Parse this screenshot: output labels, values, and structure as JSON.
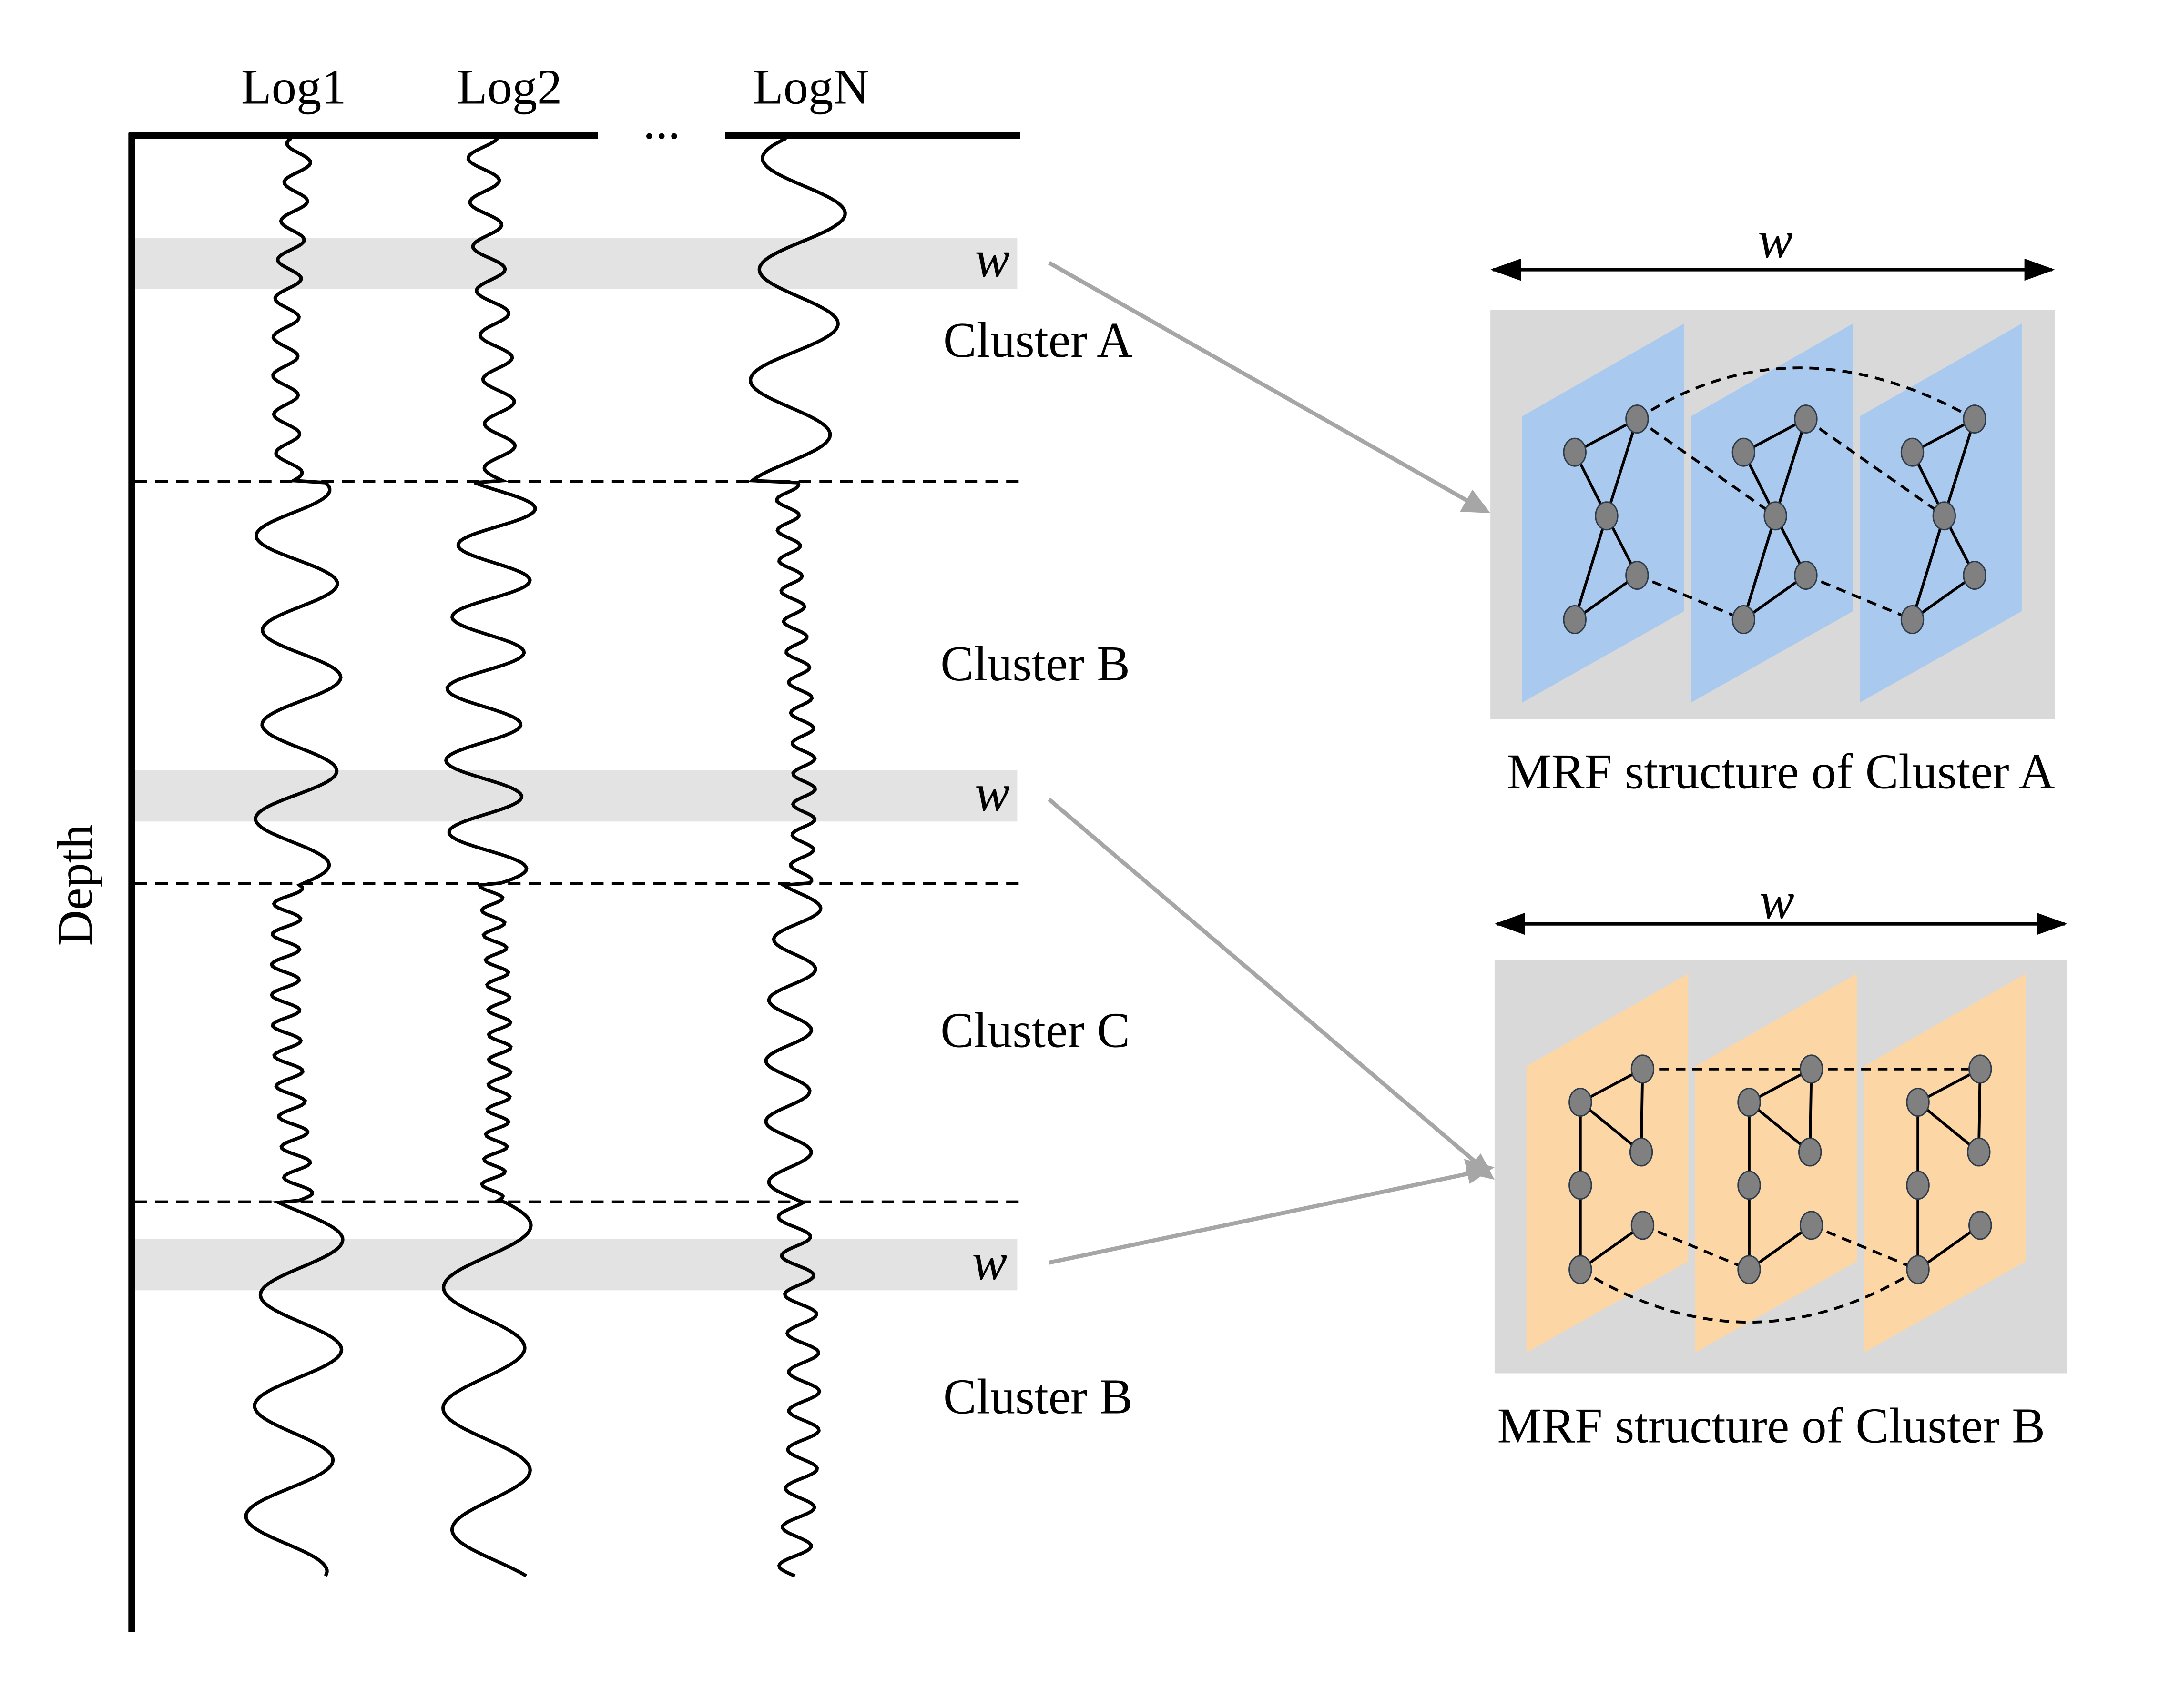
{
  "logs": [
    "Log1",
    "Log2",
    "LogN"
  ],
  "ellipsis": "...",
  "depth_label": "Depth",
  "window_label": "w",
  "clusters": [
    "Cluster A",
    "Cluster B",
    "Cluster C",
    "Cluster B"
  ],
  "mrf_a": {
    "caption": "MRF structure of Cluster A",
    "window_label": "w",
    "plane_color": "#a9c9ee"
  },
  "mrf_b": {
    "caption": "MRF structure of Cluster B",
    "window_label": "w",
    "plane_color": "#fdd6a5"
  },
  "colors": {
    "band": "#e3e3e3",
    "panel": "#d9d9d9",
    "node": "#808080",
    "arrow": "#a6a6a6"
  }
}
